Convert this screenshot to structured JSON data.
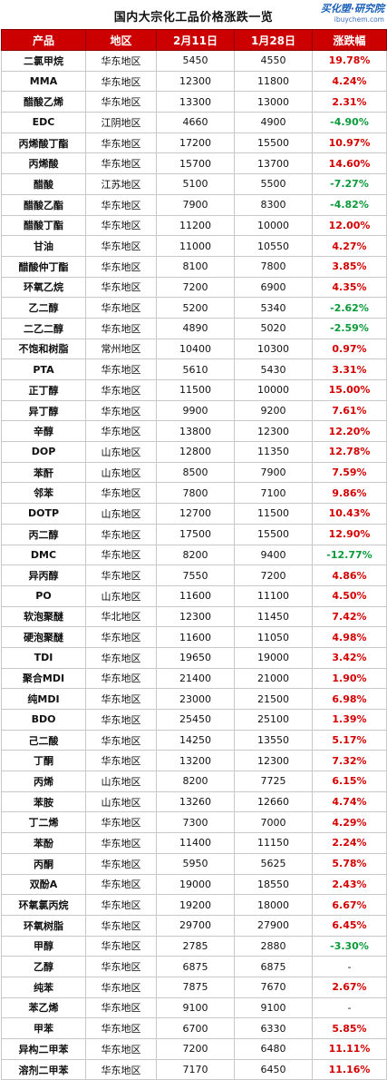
{
  "title": "国内大宗化工品价格涨跌一览",
  "logo": {
    "main": "买化塑·研究院",
    "sub": "ibuychem.com"
  },
  "colors": {
    "header_bg": "#cc0000",
    "up": "#d40000",
    "down": "#0a9a3a"
  },
  "headers": [
    "产品",
    "地区",
    "2月11日",
    "1月28日",
    "涨跌幅"
  ],
  "rows": [
    [
      "二氯甲烷",
      "华东地区",
      "5450",
      "4550",
      "19.78%"
    ],
    [
      "MMA",
      "华东地区",
      "12300",
      "11800",
      "4.24%"
    ],
    [
      "醋酸乙烯",
      "华东地区",
      "13300",
      "13000",
      "2.31%"
    ],
    [
      "EDC",
      "江阴地区",
      "4660",
      "4900",
      "-4.90%"
    ],
    [
      "丙烯酸丁酯",
      "华东地区",
      "17200",
      "15500",
      "10.97%"
    ],
    [
      "丙烯酸",
      "华东地区",
      "15700",
      "13700",
      "14.60%"
    ],
    [
      "醋酸",
      "江苏地区",
      "5100",
      "5500",
      "-7.27%"
    ],
    [
      "醋酸乙酯",
      "华东地区",
      "7900",
      "8300",
      "-4.82%"
    ],
    [
      "醋酸丁酯",
      "华东地区",
      "11200",
      "10000",
      "12.00%"
    ],
    [
      "甘油",
      "华东地区",
      "11000",
      "10550",
      "4.27%"
    ],
    [
      "醋酸仲丁酯",
      "华东地区",
      "8100",
      "7800",
      "3.85%"
    ],
    [
      "环氧乙烷",
      "华东地区",
      "7200",
      "6900",
      "4.35%"
    ],
    [
      "乙二醇",
      "华东地区",
      "5200",
      "5340",
      "-2.62%"
    ],
    [
      "二乙二醇",
      "华东地区",
      "4890",
      "5020",
      "-2.59%"
    ],
    [
      "不饱和树脂",
      "常州地区",
      "10400",
      "10300",
      "0.97%"
    ],
    [
      "PTA",
      "华东地区",
      "5610",
      "5430",
      "3.31%"
    ],
    [
      "正丁醇",
      "华东地区",
      "11500",
      "10000",
      "15.00%"
    ],
    [
      "异丁醇",
      "华东地区",
      "9900",
      "9200",
      "7.61%"
    ],
    [
      "辛醇",
      "华东地区",
      "13800",
      "12300",
      "12.20%"
    ],
    [
      "DOP",
      "山东地区",
      "12800",
      "11350",
      "12.78%"
    ],
    [
      "苯酐",
      "山东地区",
      "8500",
      "7900",
      "7.59%"
    ],
    [
      "邻苯",
      "华东地区",
      "7800",
      "7100",
      "9.86%"
    ],
    [
      "DOTP",
      "山东地区",
      "12700",
      "11500",
      "10.43%"
    ],
    [
      "丙二醇",
      "华东地区",
      "17500",
      "15500",
      "12.90%"
    ],
    [
      "DMC",
      "华东地区",
      "8200",
      "9400",
      "-12.77%"
    ],
    [
      "异丙醇",
      "华东地区",
      "7550",
      "7200",
      "4.86%"
    ],
    [
      "PO",
      "山东地区",
      "11600",
      "11100",
      "4.50%"
    ],
    [
      "软泡聚醚",
      "华北地区",
      "12300",
      "11450",
      "7.42%"
    ],
    [
      "硬泡聚醚",
      "华东地区",
      "11600",
      "11050",
      "4.98%"
    ],
    [
      "TDI",
      "华东地区",
      "19650",
      "19000",
      "3.42%"
    ],
    [
      "聚合MDI",
      "华东地区",
      "21400",
      "21000",
      "1.90%"
    ],
    [
      "纯MDI",
      "华东地区",
      "23000",
      "21500",
      "6.98%"
    ],
    [
      "BDO",
      "华东地区",
      "25450",
      "25100",
      "1.39%"
    ],
    [
      "己二酸",
      "华东地区",
      "14250",
      "13550",
      "5.17%"
    ],
    [
      "丁酮",
      "华东地区",
      "13200",
      "12300",
      "7.32%"
    ],
    [
      "丙烯",
      "山东地区",
      "8200",
      "7725",
      "6.15%"
    ],
    [
      "苯胺",
      "山东地区",
      "13260",
      "12660",
      "4.74%"
    ],
    [
      "丁二烯",
      "华东地区",
      "7300",
      "7000",
      "4.29%"
    ],
    [
      "苯酚",
      "华东地区",
      "11400",
      "11150",
      "2.24%"
    ],
    [
      "丙酮",
      "华东地区",
      "5950",
      "5625",
      "5.78%"
    ],
    [
      "双酚A",
      "华东地区",
      "19000",
      "18550",
      "2.43%"
    ],
    [
      "环氧氯丙烷",
      "华东地区",
      "19200",
      "18000",
      "6.67%"
    ],
    [
      "环氧树脂",
      "华东地区",
      "29700",
      "27900",
      "6.45%"
    ],
    [
      "甲醇",
      "华东地区",
      "2785",
      "2880",
      "-3.30%"
    ],
    [
      "乙醇",
      "华东地区",
      "6875",
      "6875",
      "-"
    ],
    [
      "纯苯",
      "华东地区",
      "7875",
      "7670",
      "2.67%"
    ],
    [
      "苯乙烯",
      "华东地区",
      "9100",
      "9100",
      "-"
    ],
    [
      "甲苯",
      "华东地区",
      "6700",
      "6330",
      "5.85%"
    ],
    [
      "异构二甲苯",
      "华东地区",
      "7200",
      "6480",
      "11.11%"
    ],
    [
      "溶剂二甲苯",
      "华东地区",
      "7170",
      "6450",
      "11.16%"
    ]
  ]
}
